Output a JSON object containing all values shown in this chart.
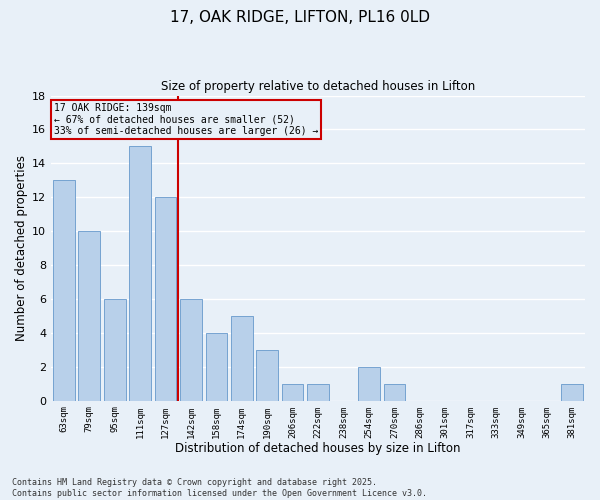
{
  "title1": "17, OAK RIDGE, LIFTON, PL16 0LD",
  "title2": "Size of property relative to detached houses in Lifton",
  "xlabel": "Distribution of detached houses by size in Lifton",
  "ylabel": "Number of detached properties",
  "bar_labels": [
    "63sqm",
    "79sqm",
    "95sqm",
    "111sqm",
    "127sqm",
    "142sqm",
    "158sqm",
    "174sqm",
    "190sqm",
    "206sqm",
    "222sqm",
    "238sqm",
    "254sqm",
    "270sqm",
    "286sqm",
    "301sqm",
    "317sqm",
    "333sqm",
    "349sqm",
    "365sqm",
    "381sqm"
  ],
  "bar_values": [
    13,
    10,
    6,
    15,
    12,
    6,
    4,
    5,
    3,
    1,
    1,
    0,
    2,
    1,
    0,
    0,
    0,
    0,
    0,
    0,
    1
  ],
  "bar_color": "#B8D0EA",
  "bar_edgecolor": "#6699CC",
  "background_color": "#E8F0F8",
  "grid_color": "#FFFFFF",
  "vline_x_index": 4.5,
  "vline_color": "#CC0000",
  "annotation_text": "17 OAK RIDGE: 139sqm\n← 67% of detached houses are smaller (52)\n33% of semi-detached houses are larger (26) →",
  "annotation_box_color": "#CC0000",
  "ylim": [
    0,
    18
  ],
  "yticks": [
    0,
    2,
    4,
    6,
    8,
    10,
    12,
    14,
    16,
    18
  ],
  "footnote": "Contains HM Land Registry data © Crown copyright and database right 2025.\nContains public sector information licensed under the Open Government Licence v3.0."
}
